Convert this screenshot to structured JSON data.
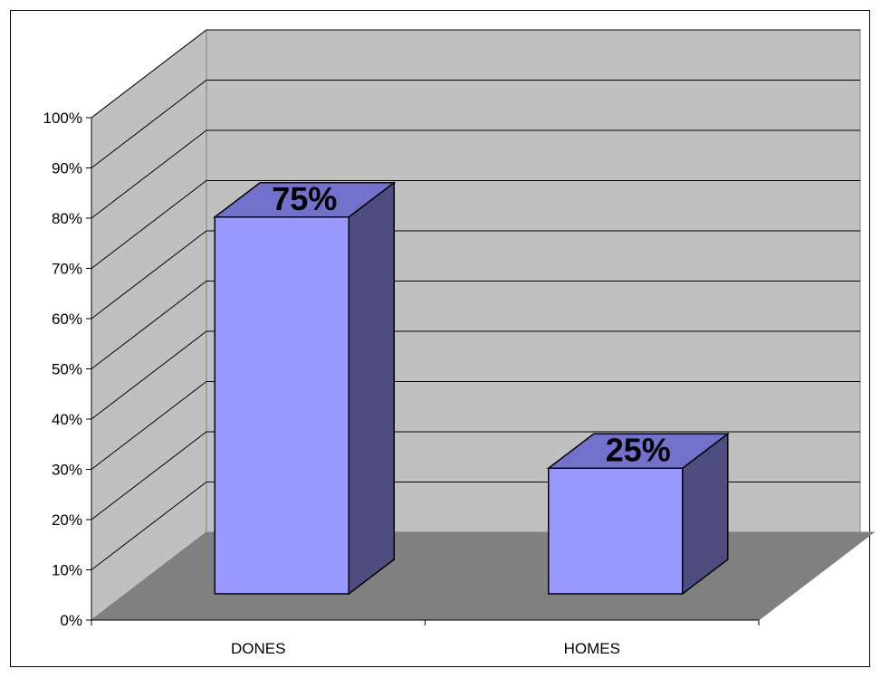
{
  "chart_data": {
    "type": "bar",
    "style": "3d-clustered-column",
    "categories": [
      "DONES",
      "HOMES"
    ],
    "values": [
      75,
      25
    ],
    "data_labels": [
      "75%",
      "25%"
    ],
    "yticks": [
      "0%",
      "10%",
      "20%",
      "30%",
      "40%",
      "50%",
      "60%",
      "70%",
      "80%",
      "90%",
      "100%"
    ],
    "ylim": [
      0,
      100
    ],
    "grid": true,
    "legend": "none"
  },
  "colors": {
    "bar_front": "#9999ff",
    "bar_top": "#7272cc",
    "bar_side": "#4d4d80",
    "back_wall": "#c0c0c0",
    "side_wall": "#c0c0c0",
    "floor": "#808080"
  }
}
